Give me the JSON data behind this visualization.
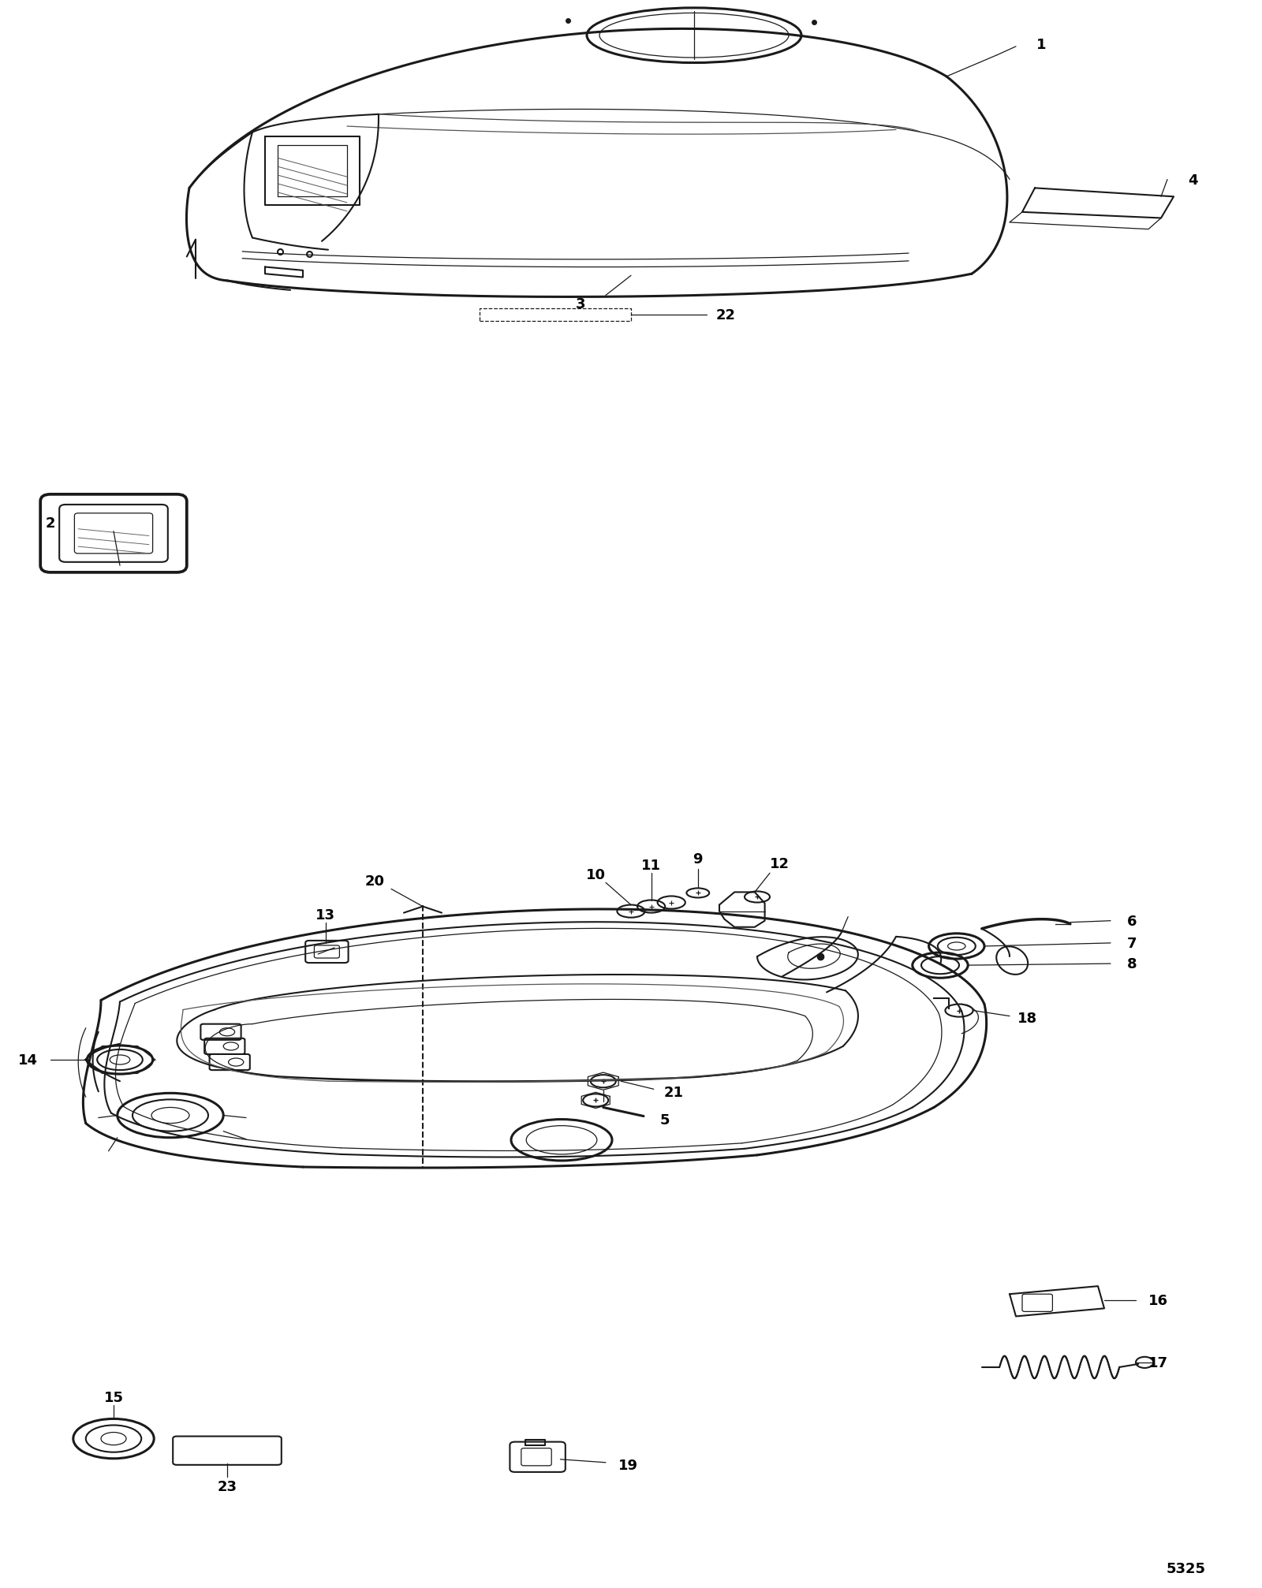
{
  "background_color": "#ffffff",
  "line_color": "#1a1a1a",
  "figsize": [
    16.0,
    20.15
  ],
  "dpi": 100,
  "lw_thick": 2.2,
  "lw_med": 1.5,
  "lw_thin": 0.9,
  "label_fontsize": 13,
  "label_fontsize_sm": 11,
  "bottom_label": "5325"
}
